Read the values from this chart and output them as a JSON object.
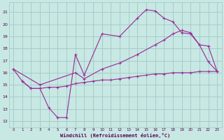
{
  "bg_color": "#c8e8e4",
  "grid_color": "#a0c8c4",
  "line_color": "#993399",
  "xlabel": "Windchill (Refroidissement éolien,°C)",
  "ylabel_ticks": [
    12,
    13,
    14,
    15,
    16,
    17,
    18,
    19,
    20,
    21
  ],
  "xlim": [
    -0.5,
    23.5
  ],
  "ylim": [
    11.5,
    21.8
  ],
  "x_ticks": [
    0,
    1,
    2,
    3,
    4,
    5,
    6,
    7,
    8,
    9,
    10,
    11,
    12,
    13,
    14,
    15,
    16,
    17,
    18,
    19,
    20,
    21,
    22,
    23
  ],
  "curve1_x": [
    0,
    1,
    2,
    3,
    4,
    5,
    6,
    7,
    8,
    10,
    12,
    14,
    15,
    16,
    17,
    18,
    19,
    20,
    21,
    22,
    23
  ],
  "curve1_y": [
    16.3,
    15.3,
    14.7,
    14.7,
    13.1,
    12.3,
    12.3,
    17.5,
    15.8,
    19.2,
    19.0,
    20.5,
    21.2,
    21.1,
    20.5,
    20.2,
    19.3,
    19.2,
    18.3,
    16.9,
    16.1
  ],
  "curve2_x": [
    0,
    3,
    7,
    8,
    10,
    12,
    14,
    16,
    17,
    18,
    19,
    20,
    21,
    22,
    23
  ],
  "curve2_y": [
    16.3,
    15.0,
    16.0,
    15.5,
    16.3,
    16.8,
    17.5,
    18.3,
    18.7,
    19.2,
    19.5,
    19.3,
    18.3,
    18.2,
    16.1
  ],
  "curve3_x": [
    1,
    2,
    3,
    4,
    5,
    6,
    7,
    8,
    9,
    10,
    11,
    12,
    13,
    14,
    15,
    16,
    17,
    18,
    19,
    20,
    21,
    22,
    23
  ],
  "curve3_y": [
    15.3,
    14.7,
    14.7,
    14.8,
    14.8,
    14.9,
    15.1,
    15.2,
    15.3,
    15.4,
    15.4,
    15.5,
    15.6,
    15.7,
    15.8,
    15.9,
    15.9,
    16.0,
    16.0,
    16.0,
    16.1,
    16.1,
    16.1
  ]
}
